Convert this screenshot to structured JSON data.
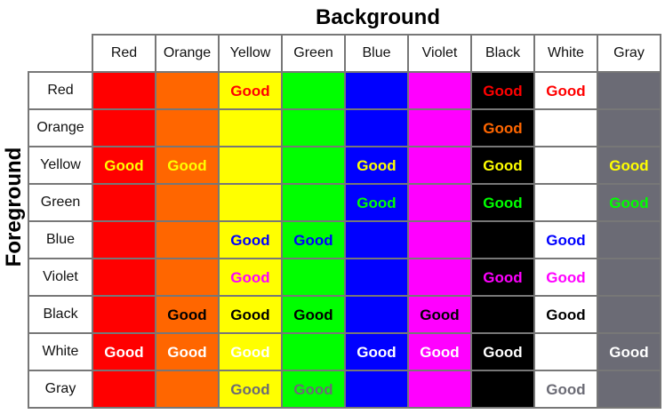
{
  "chart_data": {
    "type": "table",
    "column_axis_title": "Background",
    "row_axis_title": "Foreground",
    "columns": [
      {
        "name": "Red",
        "color": "#ff0000"
      },
      {
        "name": "Orange",
        "color": "#ff6600"
      },
      {
        "name": "Yellow",
        "color": "#ffff00"
      },
      {
        "name": "Green",
        "color": "#00ff00"
      },
      {
        "name": "Blue",
        "color": "#0000ff"
      },
      {
        "name": "Violet",
        "color": "#ff00ff"
      },
      {
        "name": "Black",
        "color": "#000000"
      },
      {
        "name": "White",
        "color": "#ffffff"
      },
      {
        "name": "Gray",
        "color": "#6b6b75"
      }
    ],
    "rows": [
      {
        "name": "Red",
        "color": "#ff0000",
        "cells": [
          "",
          "",
          "Good",
          "",
          "",
          "",
          "Good",
          "Good",
          ""
        ]
      },
      {
        "name": "Orange",
        "color": "#ff6600",
        "cells": [
          "",
          "",
          "",
          "",
          "",
          "",
          "Good",
          "",
          ""
        ]
      },
      {
        "name": "Yellow",
        "color": "#ffff00",
        "cells": [
          "Good",
          "Good",
          "",
          "",
          "Good",
          "",
          "Good",
          "",
          "Good"
        ]
      },
      {
        "name": "Green",
        "color": "#00ff00",
        "cells": [
          "",
          "",
          "",
          "",
          "Good",
          "",
          "Good",
          "",
          "Good"
        ]
      },
      {
        "name": "Blue",
        "color": "#0000ff",
        "cells": [
          "",
          "",
          "Good",
          "Good",
          "",
          "",
          "",
          "Good",
          ""
        ]
      },
      {
        "name": "Violet",
        "color": "#ff00ff",
        "cells": [
          "",
          "",
          "Good",
          "",
          "",
          "",
          "Good",
          "Good",
          ""
        ]
      },
      {
        "name": "Black",
        "color": "#000000",
        "cells": [
          "",
          "Good",
          "Good",
          "Good",
          "",
          "Good",
          "",
          "Good",
          ""
        ]
      },
      {
        "name": "White",
        "color": "#ffffff",
        "cells": [
          "Good",
          "Good",
          "Good",
          "",
          "Good",
          "Good",
          "Good",
          "",
          "Good"
        ]
      },
      {
        "name": "Gray",
        "color": "#6b6b75",
        "cells": [
          "",
          "",
          "Good",
          "Good",
          "",
          "",
          "",
          "Good",
          ""
        ]
      }
    ]
  }
}
